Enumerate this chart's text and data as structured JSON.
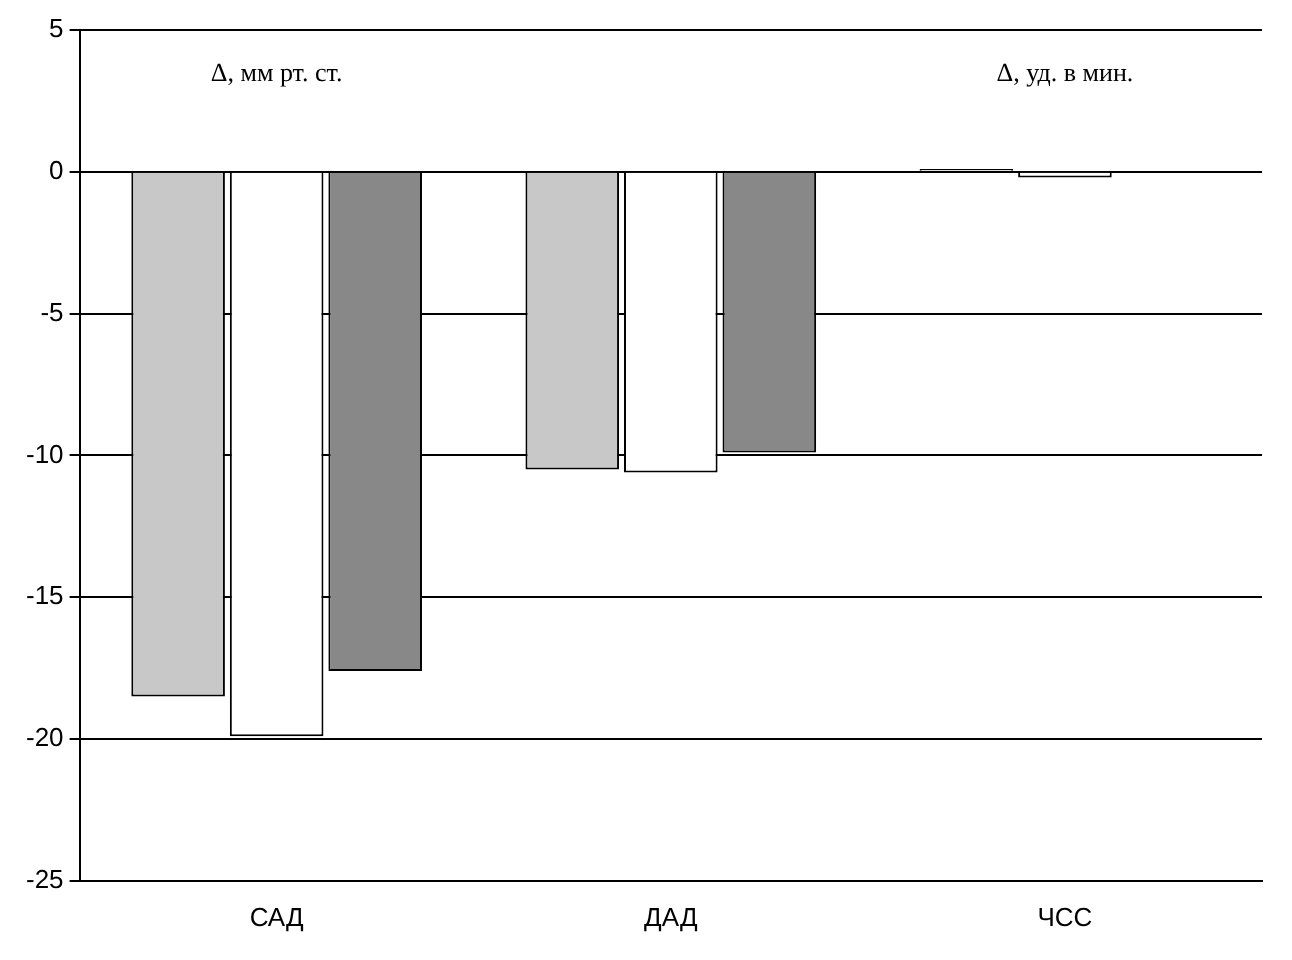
{
  "chart_data": {
    "type": "bar",
    "categories": [
      "САД",
      "ДАД",
      "ЧСС"
    ],
    "series": [
      {
        "color": "#c8c8c8",
        "values": [
          -18.5,
          -10.5,
          0.1
        ]
      },
      {
        "color": "#ffffff",
        "values": [
          -19.9,
          -10.6,
          -0.2
        ]
      },
      {
        "color": "#888888",
        "values": [
          -17.6,
          -9.9,
          0
        ]
      }
    ],
    "annotations": [
      "Δ, мм рт. ст.",
      "Δ, уд. в мин."
    ],
    "ylim": [
      -25,
      5
    ],
    "yticks": [
      -25,
      -20,
      -15,
      -10,
      -5,
      0,
      5
    ],
    "grid": "y",
    "legend": false
  }
}
